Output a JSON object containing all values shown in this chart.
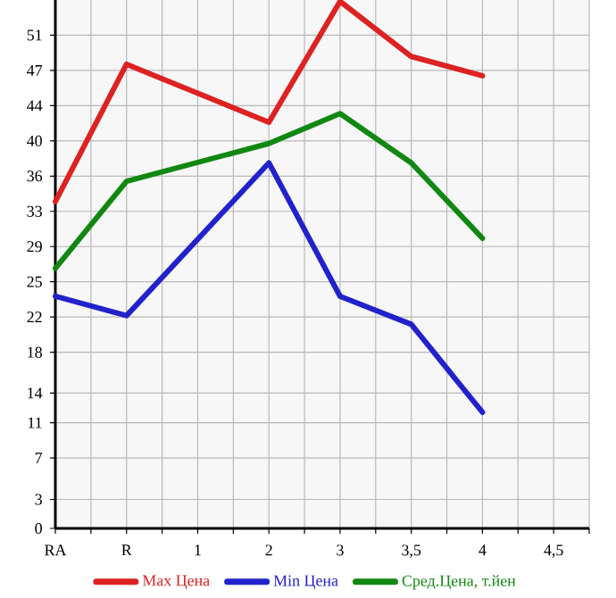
{
  "chart_data": {
    "type": "line",
    "categories": [
      "RA",
      "R",
      "1",
      "2",
      "3",
      "3,5",
      "4",
      "4,5"
    ],
    "series": [
      {
        "name": "Max Цена",
        "color": "#dd2222",
        "values": [
          33.8,
          48.0,
          null,
          42.0,
          54.5,
          48.8,
          46.8,
          null
        ]
      },
      {
        "name": "Min Цена",
        "color": "#2222cc",
        "values": [
          24.0,
          22.0,
          null,
          37.8,
          24.0,
          21.1,
          12.0,
          null
        ]
      },
      {
        "name": "Сред.Цена, т.йен",
        "color": "#118811",
        "values": [
          26.9,
          35.9,
          null,
          39.8,
          42.9,
          37.8,
          30.0,
          null
        ]
      }
    ],
    "ylim": [
      0,
      54.64
    ],
    "yticks": [
      0,
      3,
      {
        "value": 7.286,
        "label": "7"
      },
      {
        "value": 10.929,
        "label": "11"
      },
      14,
      {
        "value": 18.214,
        "label": "18"
      },
      {
        "value": 21.857,
        "label": "22"
      },
      {
        "value": 25.5,
        "label": "25"
      },
      {
        "value": 29.143,
        "label": "29"
      },
      {
        "value": 32.786,
        "label": "33"
      },
      {
        "value": 36.429,
        "label": "36"
      },
      {
        "value": 40.071,
        "label": "40"
      },
      {
        "value": 43.714,
        "label": "44"
      },
      {
        "value": 47.357,
        "label": "47"
      },
      51
    ],
    "grid": true,
    "legend": "bottom",
    "marker": "none",
    "line_style": "solid"
  }
}
